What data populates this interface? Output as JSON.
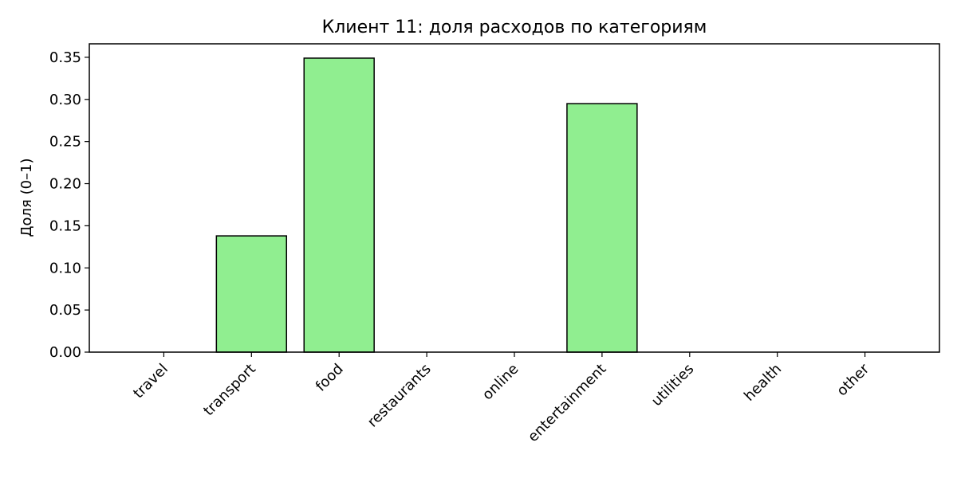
{
  "chart_data": {
    "type": "bar",
    "title": "Клиент 11: доля расходов по категориям",
    "xlabel": "",
    "ylabel": "Доля (0–1)",
    "categories": [
      "travel",
      "transport",
      "food",
      "restaurants",
      "online",
      "entertainment",
      "utilities",
      "health",
      "other"
    ],
    "values": [
      0.0,
      0.138,
      0.349,
      0.0,
      0.0,
      0.295,
      0.0,
      0.0,
      0.0
    ],
    "ylim": [
      0,
      0.366
    ],
    "yticks": [
      "0.00",
      "0.05",
      "0.10",
      "0.15",
      "0.20",
      "0.25",
      "0.30",
      "0.35"
    ],
    "grid": false,
    "bar_color": "#90ee90",
    "edge_color": "#000000"
  }
}
